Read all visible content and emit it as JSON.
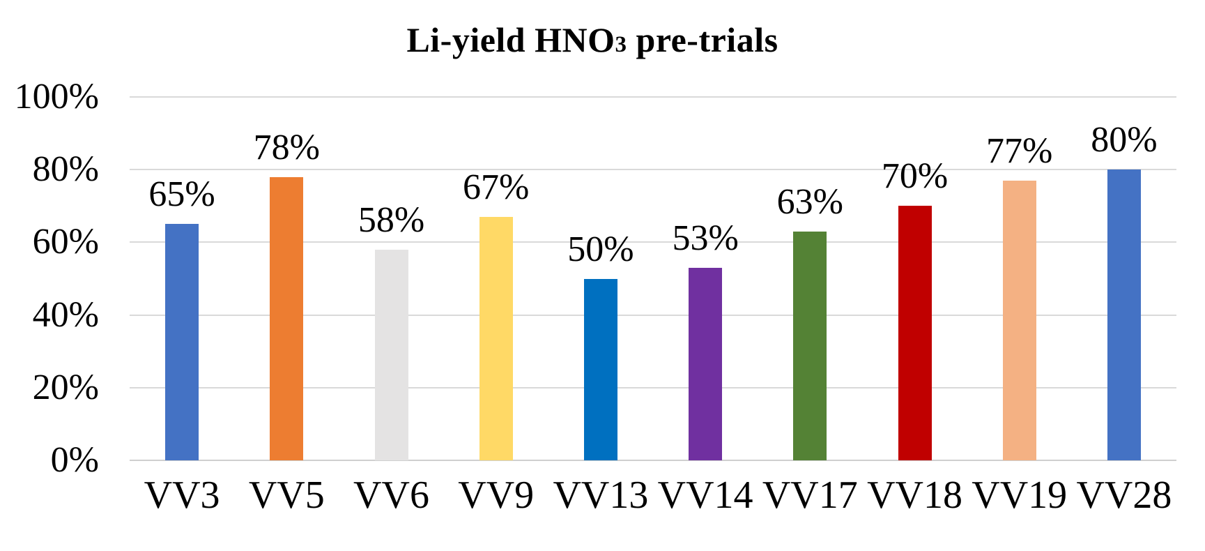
{
  "title": {
    "prefix": "Li-yield HNO",
    "subscript": "3",
    "suffix": " pre-trials"
  },
  "chart_data": {
    "type": "bar",
    "title": "Li-yield HNO3 pre-trials",
    "categories": [
      "VV3",
      "VV5",
      "VV6",
      "VV9",
      "VV13",
      "VV14",
      "VV17",
      "VV18",
      "VV19",
      "VV28"
    ],
    "values": [
      65,
      78,
      58,
      67,
      50,
      53,
      63,
      70,
      77,
      80
    ],
    "data_labels": [
      "65%",
      "78%",
      "58%",
      "67%",
      "50%",
      "53%",
      "63%",
      "70%",
      "77%",
      "80%"
    ],
    "bar_colors": [
      "#4472C4",
      "#ED7D31",
      "#E4E3E3",
      "#FFD966",
      "#0070C0",
      "#7030A0",
      "#548235",
      "#C00000",
      "#F4B183",
      "#4472C4"
    ],
    "xlabel": "",
    "ylabel": "",
    "ylim": [
      0,
      100
    ],
    "y_ticks": [
      "0%",
      "20%",
      "40%",
      "60%",
      "80%",
      "100%"
    ],
    "y_tick_values": [
      0,
      20,
      40,
      60,
      80,
      100
    ],
    "grid": true,
    "legend": false,
    "gridline_color": "#D9D9D9",
    "axis_line_color": "#CFCFCF",
    "background": "#FFFFFF",
    "text_color": "#000000"
  }
}
